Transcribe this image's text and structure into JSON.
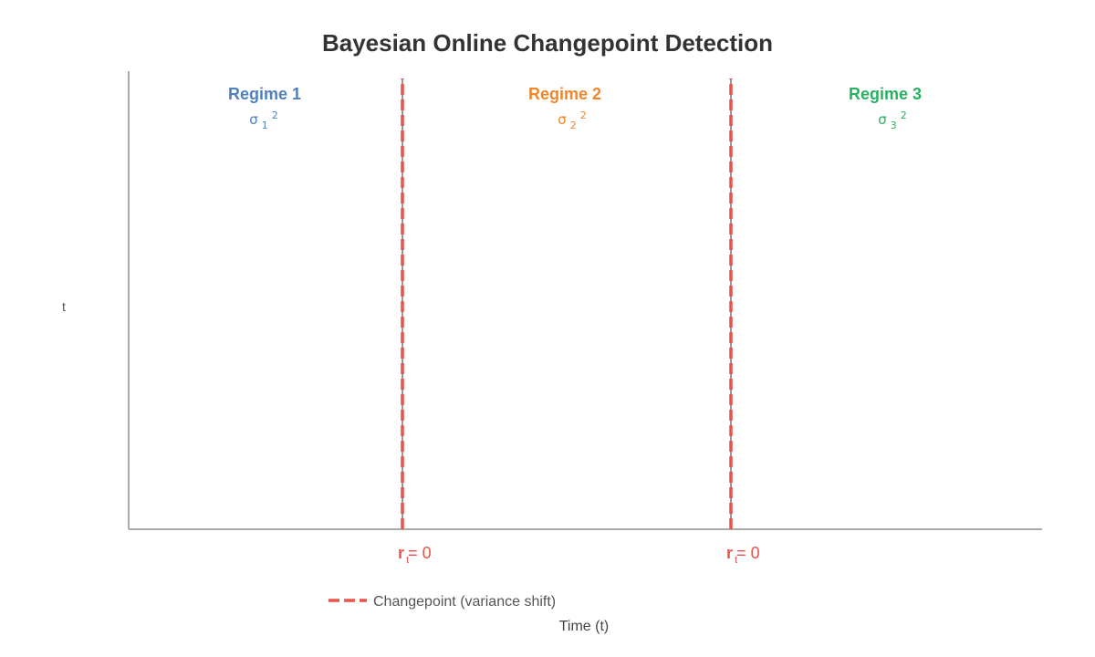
{
  "title": "Bayesian Online Changepoint Detection",
  "axes": {
    "x_label": "Time (t)",
    "y_label": "t"
  },
  "regimes": [
    {
      "name": "Regime 1",
      "sigma_symbol": "σ",
      "sigma_sub": "1",
      "sigma_sup": "2",
      "color": "#4f81bd"
    },
    {
      "name": "Regime 2",
      "sigma_symbol": "σ",
      "sigma_sub": "2",
      "sigma_sup": "2",
      "color": "#f0862a"
    },
    {
      "name": "Regime 3",
      "sigma_symbol": "σ",
      "sigma_sub": "3",
      "sigma_sup": "2",
      "color": "#2ab061"
    }
  ],
  "changepoints": [
    {
      "label_r": "r",
      "label_sub": "t",
      "label_eq": "= 0"
    },
    {
      "label_r": "r",
      "label_sub": "t",
      "label_eq": "= 0"
    }
  ],
  "legend": {
    "changepoint_label": "Changepoint (variance shift)"
  },
  "colors": {
    "changepoint": "#e8534a",
    "axis": "#aaaaaa"
  }
}
